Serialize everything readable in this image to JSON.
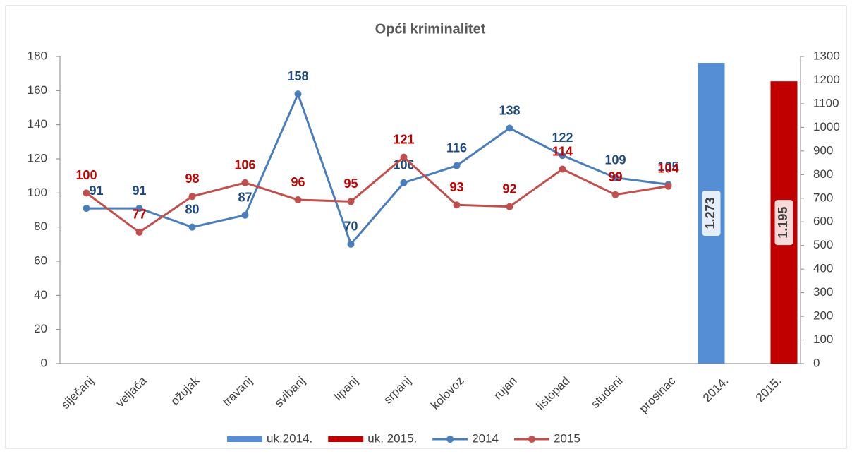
{
  "chart_data": {
    "type": "combo",
    "title": "Opći kriminalitet",
    "categories": [
      "siječanj",
      "veljača",
      "ožujak",
      "travanj",
      "svibanj",
      "lipanj",
      "srpanj",
      "kolovoz",
      "rujan",
      "listopad",
      "studeni",
      "prosinac",
      "2014.",
      "2015."
    ],
    "series": [
      {
        "name": "uk.2014.",
        "type": "bar",
        "axis": "y2",
        "color": "#558ed5",
        "values": [
          null,
          null,
          null,
          null,
          null,
          null,
          null,
          null,
          null,
          null,
          null,
          null,
          1273,
          null
        ],
        "value_labels": [
          null,
          null,
          null,
          null,
          null,
          null,
          null,
          null,
          null,
          null,
          null,
          null,
          "1.273",
          null
        ]
      },
      {
        "name": "uk. 2015.",
        "type": "bar",
        "axis": "y2",
        "color": "#c00000",
        "values": [
          null,
          null,
          null,
          null,
          null,
          null,
          null,
          null,
          null,
          null,
          null,
          null,
          null,
          1195
        ],
        "value_labels": [
          null,
          null,
          null,
          null,
          null,
          null,
          null,
          null,
          null,
          null,
          null,
          null,
          null,
          "1.195"
        ]
      },
      {
        "name": "2014",
        "type": "line",
        "color": "#4a7ebb",
        "label_color": "#1f497d",
        "values": [
          91,
          91,
          80,
          87,
          158,
          70,
          106,
          116,
          138,
          122,
          109,
          105,
          null,
          null
        ]
      },
      {
        "name": "2015",
        "type": "line",
        "color": "#c0504d",
        "label_color": "#c00000",
        "values": [
          100,
          77,
          98,
          106,
          96,
          95,
          121,
          93,
          92,
          114,
          99,
          104,
          null,
          null
        ]
      }
    ],
    "ylim": [
      0,
      180
    ],
    "yticks": [
      0,
      20,
      40,
      60,
      80,
      100,
      120,
      140,
      160,
      180
    ],
    "y2lim": [
      0,
      1300
    ],
    "y2ticks": [
      0,
      100,
      200,
      300,
      400,
      500,
      600,
      700,
      800,
      900,
      1000,
      1100,
      1200,
      1300
    ],
    "legend": "bottom"
  }
}
